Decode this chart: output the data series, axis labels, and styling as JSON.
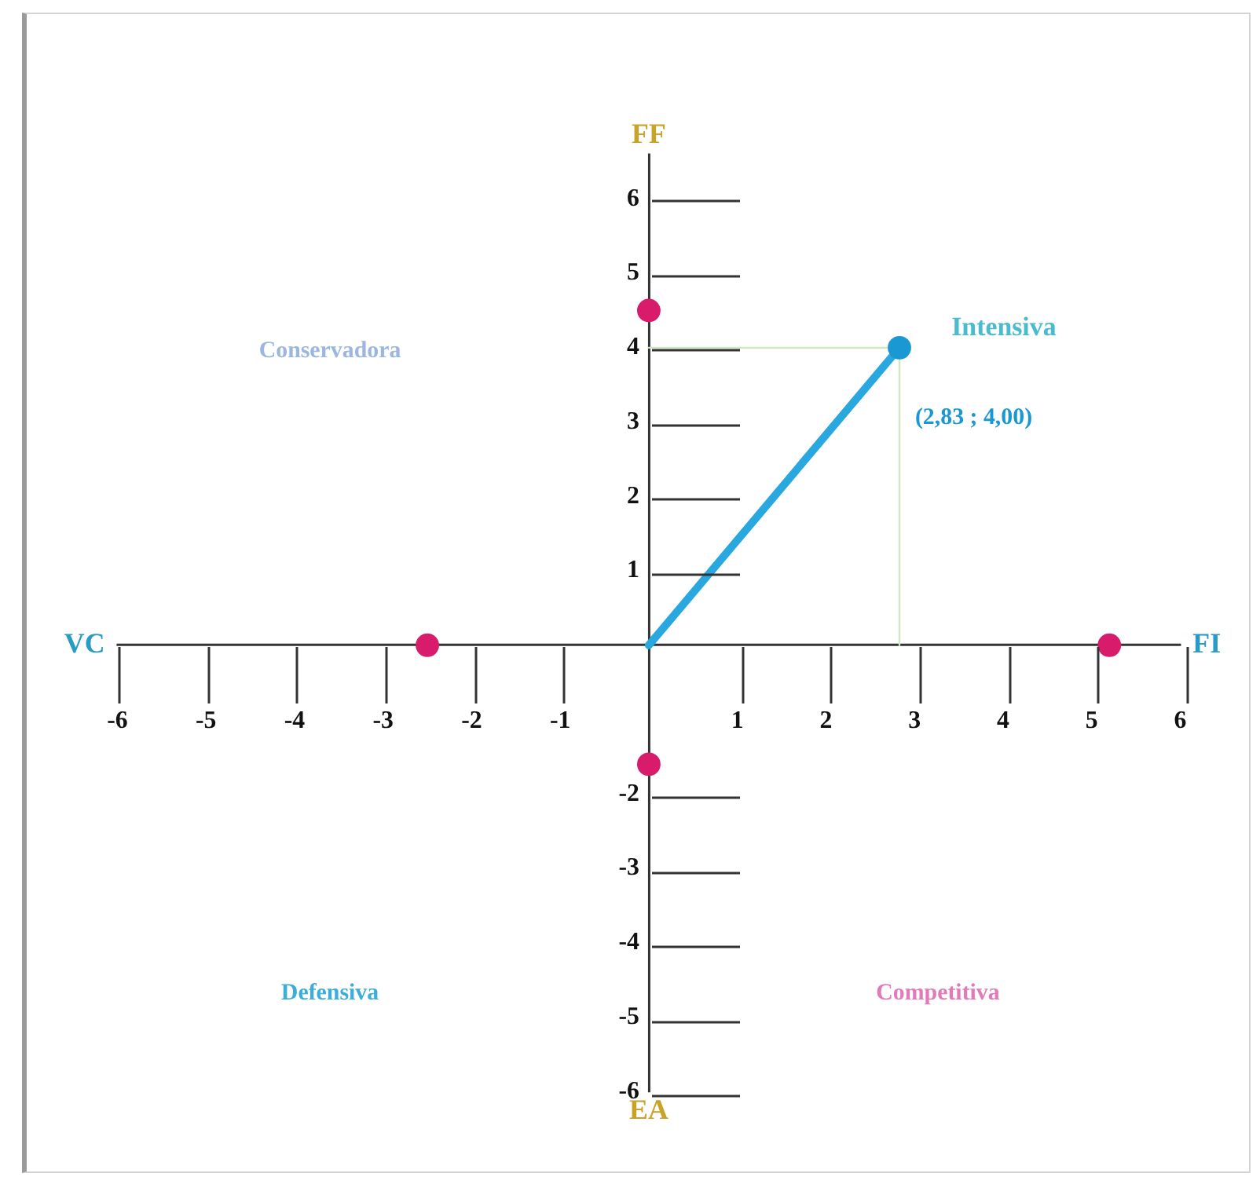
{
  "chart_data": {
    "type": "scatter",
    "xlim": [
      -6,
      6
    ],
    "ylim": [
      -6,
      6.6
    ],
    "xticks": [
      -6,
      -5,
      -4,
      -3,
      -2,
      -1,
      1,
      2,
      3,
      4,
      5,
      6
    ],
    "yticks": [
      -6,
      -5,
      -4,
      -3,
      -2,
      1,
      2,
      3,
      4,
      5,
      6
    ],
    "grid": false,
    "legend": false,
    "series": [
      {
        "type": "line",
        "x": [
          0,
          2.83,
          2.83
        ],
        "values": [
          4,
          4,
          0
        ],
        "color": "#cfe8bf",
        "marker": "none"
      },
      {
        "type": "line",
        "x": [
          0,
          2.83
        ],
        "values": [
          0,
          4
        ],
        "color": "#29a8e0",
        "marker": "none"
      },
      {
        "x": [
          2.83
        ],
        "values": [
          4
        ],
        "color": "#1a98d4",
        "marker": "circle",
        "value_labels": [
          "(2,83 ; 4,00)"
        ]
      },
      {
        "x": [
          0,
          -2.5,
          5.2,
          0
        ],
        "values": [
          4.5,
          0,
          0,
          -1.6
        ],
        "color": "#d81b6b",
        "marker": "circle"
      }
    ],
    "annotations": [
      "VC",
      "FI",
      "FF",
      "EA",
      "Conservadora",
      "Intensiva",
      "Defensiva",
      "Competitiva"
    ]
  }
}
